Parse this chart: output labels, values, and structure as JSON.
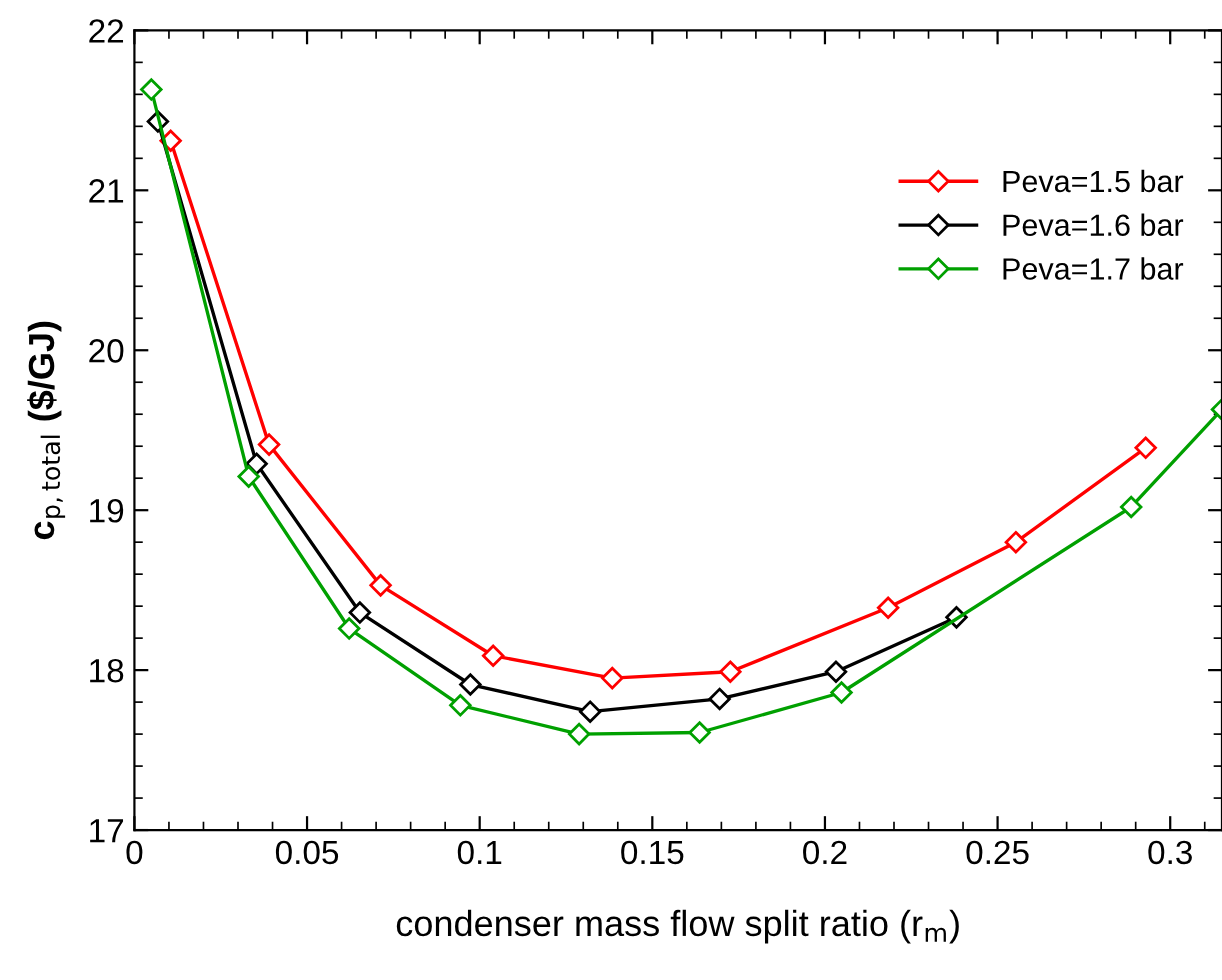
{
  "chart_data": {
    "type": "line",
    "xlabel": "condenser mass flow split ratio (r$_{m}$)",
    "ylabel": "c$_{p,total}$ ($/GJ)",
    "xlim": [
      0,
      0.315
    ],
    "xticks": [
      0,
      0.05,
      0.1,
      0.15,
      0.2,
      0.25,
      0.3
    ],
    "ylim": [
      17,
      22
    ],
    "yticks": [
      17,
      18,
      19,
      20,
      21,
      22
    ],
    "marker": "diamond",
    "line_style": "solid",
    "grid": false,
    "legend": "top right",
    "series": [
      {
        "name": "Peva=1.5 bar",
        "color": "#ff0000",
        "x": [
          0.0105,
          0.039,
          0.0713,
          0.1039,
          0.1384,
          0.1726,
          0.2183,
          0.2553,
          0.2929
        ],
        "values": [
          21.31,
          19.41,
          18.53,
          18.09,
          17.95,
          17.99,
          18.39,
          18.8,
          19.39
        ]
      },
      {
        "name": "Peva=1.6 bar",
        "color": "#000000",
        "x": [
          0.0068,
          0.0354,
          0.0653,
          0.0973,
          0.132,
          0.1695,
          0.2032,
          0.2381
        ],
        "values": [
          21.43,
          19.29,
          18.36,
          17.91,
          17.74,
          17.82,
          17.99,
          18.33
        ]
      },
      {
        "name": "Peva=1.7 bar",
        "color": "#00a000",
        "x": [
          0.0049,
          0.0331,
          0.0622,
          0.0944,
          0.1288,
          0.1637,
          0.2048,
          0.2887,
          0.315
        ],
        "values": [
          21.63,
          19.21,
          18.26,
          17.78,
          17.6,
          17.61,
          17.86,
          19.02,
          19.63
        ]
      }
    ]
  }
}
